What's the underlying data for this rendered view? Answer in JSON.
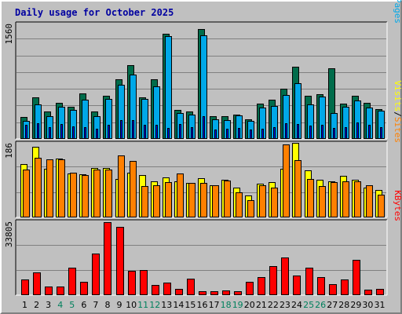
{
  "chart_data": {
    "type": "bar",
    "title": "Daily usage for October 2025",
    "colors": {
      "hits": "#006c4b",
      "files": "#00a8e8",
      "pages": "#0000ff",
      "visits": "#ffff00",
      "sites": "#ff8000",
      "kbytes": "#ff0000",
      "weekday": "#000000",
      "weekend": "#00805c"
    },
    "categories": [
      "1",
      "2",
      "3",
      "4",
      "5",
      "6",
      "7",
      "8",
      "9",
      "10",
      "11",
      "12",
      "13",
      "14",
      "15",
      "16",
      "17",
      "18",
      "19",
      "20",
      "21",
      "22",
      "23",
      "24",
      "25",
      "26",
      "27",
      "28",
      "29",
      "30",
      "31"
    ],
    "weekend_days": [
      "4",
      "5",
      "11",
      "12",
      "18",
      "19",
      "25",
      "26"
    ],
    "panels": [
      {
        "id": "hits-files-pages",
        "ymax_label": "1560",
        "ymax": 1560,
        "legend": [
          {
            "text": "Pages",
            "color": "#00a8e8"
          },
          {
            "text": "/",
            "color": "#000000"
          },
          {
            "text": "Files",
            "color": "#0000ff"
          },
          {
            "text": "/",
            "color": "#000000"
          },
          {
            "text": "Hits",
            "color": "#006c4b"
          }
        ],
        "series": [
          {
            "name": "Hits",
            "values": [
              300,
              570,
              370,
              490,
              440,
              620,
              370,
              590,
              810,
              1000,
              570,
              810,
              1430,
              400,
              370,
              1500,
              310,
              310,
              330,
              270,
              480,
              530,
              680,
              980,
              590,
              610,
              960,
              480,
              590,
              490,
              410
            ]
          },
          {
            "name": "Files",
            "values": [
              250,
              470,
              310,
              440,
              400,
              530,
              310,
              550,
              740,
              880,
              540,
              720,
              1400,
              350,
              330,
              1410,
              270,
              260,
              320,
              250,
              430,
              450,
              600,
              760,
              470,
              580,
              350,
              440,
              520,
              430,
              380
            ]
          },
          {
            "name": "Pages",
            "values": [
              190,
              210,
              160,
              200,
              170,
              160,
              140,
              190,
              260,
              260,
              190,
              190,
              150,
              200,
              160,
              310,
              130,
              140,
              150,
              130,
              140,
              160,
              210,
              200,
              180,
              190,
              150,
              160,
              220,
              190,
              160
            ]
          }
        ]
      },
      {
        "id": "visits-sites",
        "ymax_label": "186",
        "ymax": 186,
        "legend": [
          {
            "text": "Sites",
            "color": "#ff8000"
          },
          {
            "text": "/",
            "color": "#000000"
          },
          {
            "text": "Visits",
            "color": "#ffff00"
          }
        ],
        "series": [
          {
            "name": "Visits",
            "values": [
              135,
              178,
              122,
              148,
              111,
              109,
              124,
              125,
              96,
              112,
              107,
              92,
              100,
              92,
              88,
              99,
              82,
              95,
              75,
              55,
              86,
              89,
              122,
              188,
              119,
              95,
              92,
              104,
              95,
              76,
              70
            ]
          },
          {
            "name": "Sites",
            "values": [
              120,
              151,
              146,
              146,
              113,
              107,
              120,
              121,
              157,
              143,
              80,
              81,
              90,
              111,
              88,
              88,
              81,
              93,
              63,
              44,
              82,
              76,
              185,
              145,
              96,
              80,
              90,
              92,
              92,
              82,
              58
            ]
          }
        ]
      },
      {
        "id": "kbytes",
        "ymax_label": "33805",
        "ymax": 33805,
        "legend": [
          {
            "text": "KBytes",
            "color": "#ff0000"
          }
        ],
        "series": [
          {
            "name": "KBytes",
            "values": [
              7300,
              10700,
              4100,
              4100,
              12600,
              6300,
              19100,
              33800,
              31600,
              11100,
              11500,
              4700,
              5700,
              2900,
              7700,
              1700,
              1700,
              2000,
              1700,
              6300,
              8300,
              13500,
              17300,
              9000,
              12600,
              8300,
              5000,
              7300,
              16300,
              2500,
              2900
            ]
          }
        ]
      }
    ]
  }
}
